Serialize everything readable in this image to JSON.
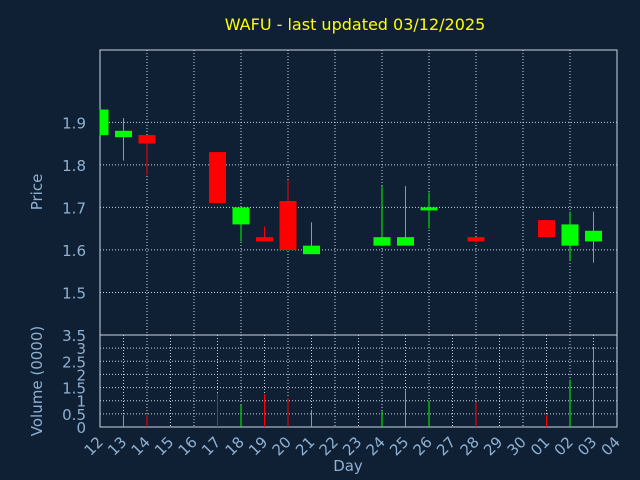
{
  "chart_data": {
    "type": "candlestick",
    "title": "WAFU - last updated 03/12/2025",
    "xlabel": "Day",
    "price_panel": {
      "ylabel": "Price",
      "ylim": [
        1.4,
        2.07
      ],
      "yticks": [
        "1.5",
        "1.6",
        "1.7",
        "1.8",
        "1.9"
      ],
      "ytick_values": [
        1.5,
        1.6,
        1.7,
        1.8,
        1.9
      ]
    },
    "volume_panel": {
      "ylabel": "Volume (0000)",
      "ylim": [
        0,
        3.5
      ],
      "yticks": [
        "0",
        "0.5",
        "1",
        "1.5",
        "2",
        "2.5",
        "3",
        "3.5"
      ],
      "ytick_values": [
        0,
        0.5,
        1,
        1.5,
        2,
        2.5,
        3,
        3.5
      ]
    },
    "x_labels": [
      "12",
      "13",
      "14",
      "15",
      "16",
      "17",
      "18",
      "19",
      "20",
      "21",
      "22",
      "23",
      "24",
      "25",
      "26",
      "27",
      "28",
      "29",
      "30",
      "01",
      "02",
      "03",
      "04"
    ],
    "grid": true,
    "colors": {
      "up": "#00ff00",
      "down": "#ff0000",
      "background": "#0f2035",
      "title": "#ffff00",
      "axis_text": "#8fb1d1"
    },
    "candles": [
      {
        "day": "12",
        "open": 1.87,
        "high": 1.93,
        "low": 1.87,
        "close": 1.93,
        "volume": 0
      },
      {
        "day": "13",
        "open": 1.865,
        "high": 1.91,
        "low": 1.81,
        "close": 1.88,
        "volume": 0.45
      },
      {
        "day": "14",
        "open": 1.87,
        "high": 1.87,
        "low": 1.775,
        "close": 1.85,
        "volume": 0.45
      },
      {
        "day": "17",
        "open": 1.83,
        "high": 1.83,
        "low": 1.71,
        "close": 1.71,
        "volume": 1.3
      },
      {
        "day": "18",
        "open": 1.66,
        "high": 1.7,
        "low": 1.62,
        "close": 1.7,
        "volume": 0.85
      },
      {
        "day": "19",
        "open": 1.63,
        "high": 1.655,
        "low": 1.62,
        "close": 1.62,
        "volume": 1.25
      },
      {
        "day": "20",
        "open": 1.715,
        "high": 1.765,
        "low": 1.6,
        "close": 1.6,
        "volume": 1.1
      },
      {
        "day": "21",
        "open": 1.59,
        "high": 1.665,
        "low": 1.59,
        "close": 1.61,
        "volume": 0.65
      },
      {
        "day": "24",
        "open": 1.61,
        "high": 1.75,
        "low": 1.61,
        "close": 1.63,
        "volume": 0.6
      },
      {
        "day": "25",
        "open": 1.61,
        "high": 1.75,
        "low": 1.61,
        "close": 1.63,
        "volume": 1.4
      },
      {
        "day": "26",
        "open": 1.695,
        "high": 1.735,
        "low": 1.65,
        "close": 1.7,
        "volume": 1.0
      },
      {
        "day": "28",
        "open": 1.63,
        "high": 1.63,
        "low": 1.615,
        "close": 1.62,
        "volume": 0.95
      },
      {
        "day": "01",
        "open": 1.67,
        "high": 1.67,
        "low": 1.63,
        "close": 1.63,
        "volume": 0.45
      },
      {
        "day": "02",
        "open": 1.61,
        "high": 1.69,
        "low": 1.575,
        "close": 1.66,
        "volume": 1.8
      },
      {
        "day": "03",
        "open": 1.62,
        "high": 1.69,
        "low": 1.57,
        "close": 1.645,
        "volume": 3.0
      }
    ]
  }
}
